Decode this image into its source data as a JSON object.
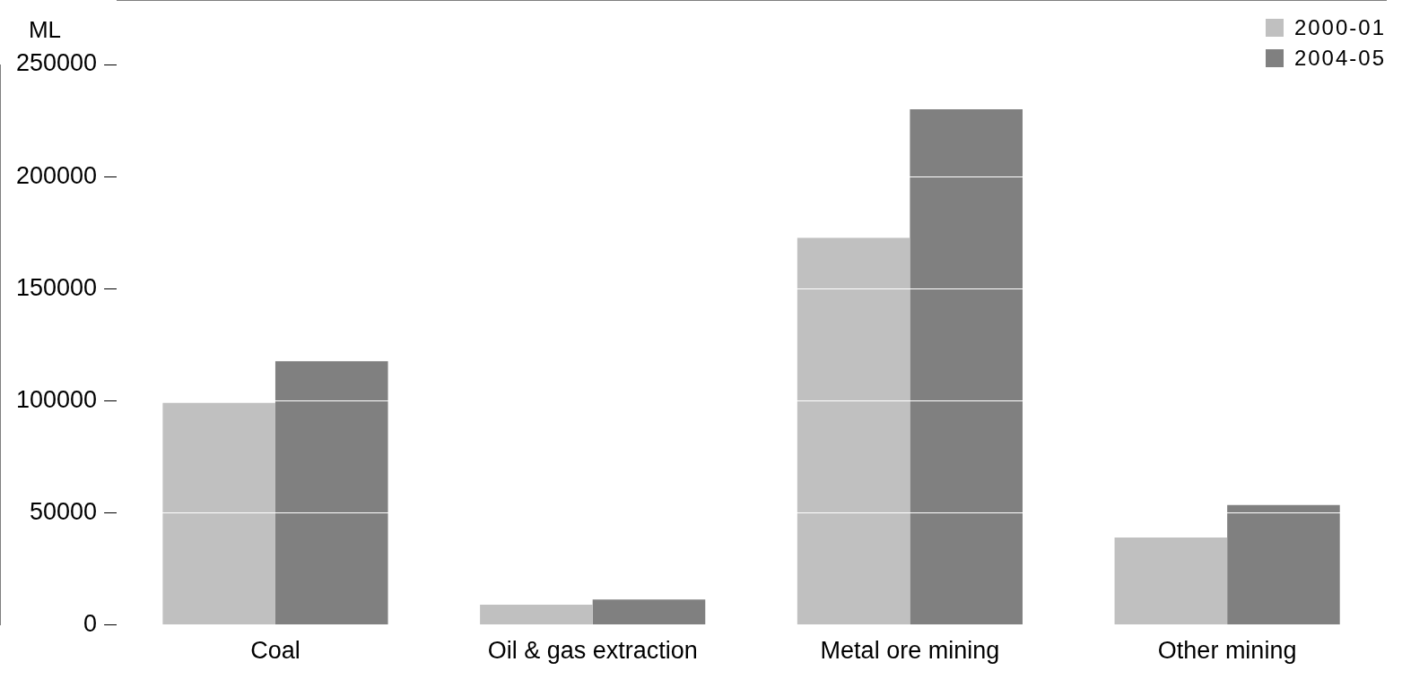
{
  "chart_data": {
    "type": "bar",
    "ylabel": "ML",
    "categories": [
      "Coal",
      "Oil & gas extraction",
      "Metal ore mining",
      "Other mining"
    ],
    "series": [
      {
        "name": "2000-01",
        "color": "#c0c0c0",
        "values": [
          99000,
          9000,
          172700,
          39000
        ]
      },
      {
        "name": "2004-05",
        "color": "#808080",
        "values": [
          117600,
          11300,
          230000,
          53500
        ]
      }
    ],
    "ylim": [
      0,
      250000
    ],
    "yticks": [
      0,
      50000,
      100000,
      150000,
      200000,
      250000
    ],
    "grid": "y",
    "legend": "top right"
  }
}
